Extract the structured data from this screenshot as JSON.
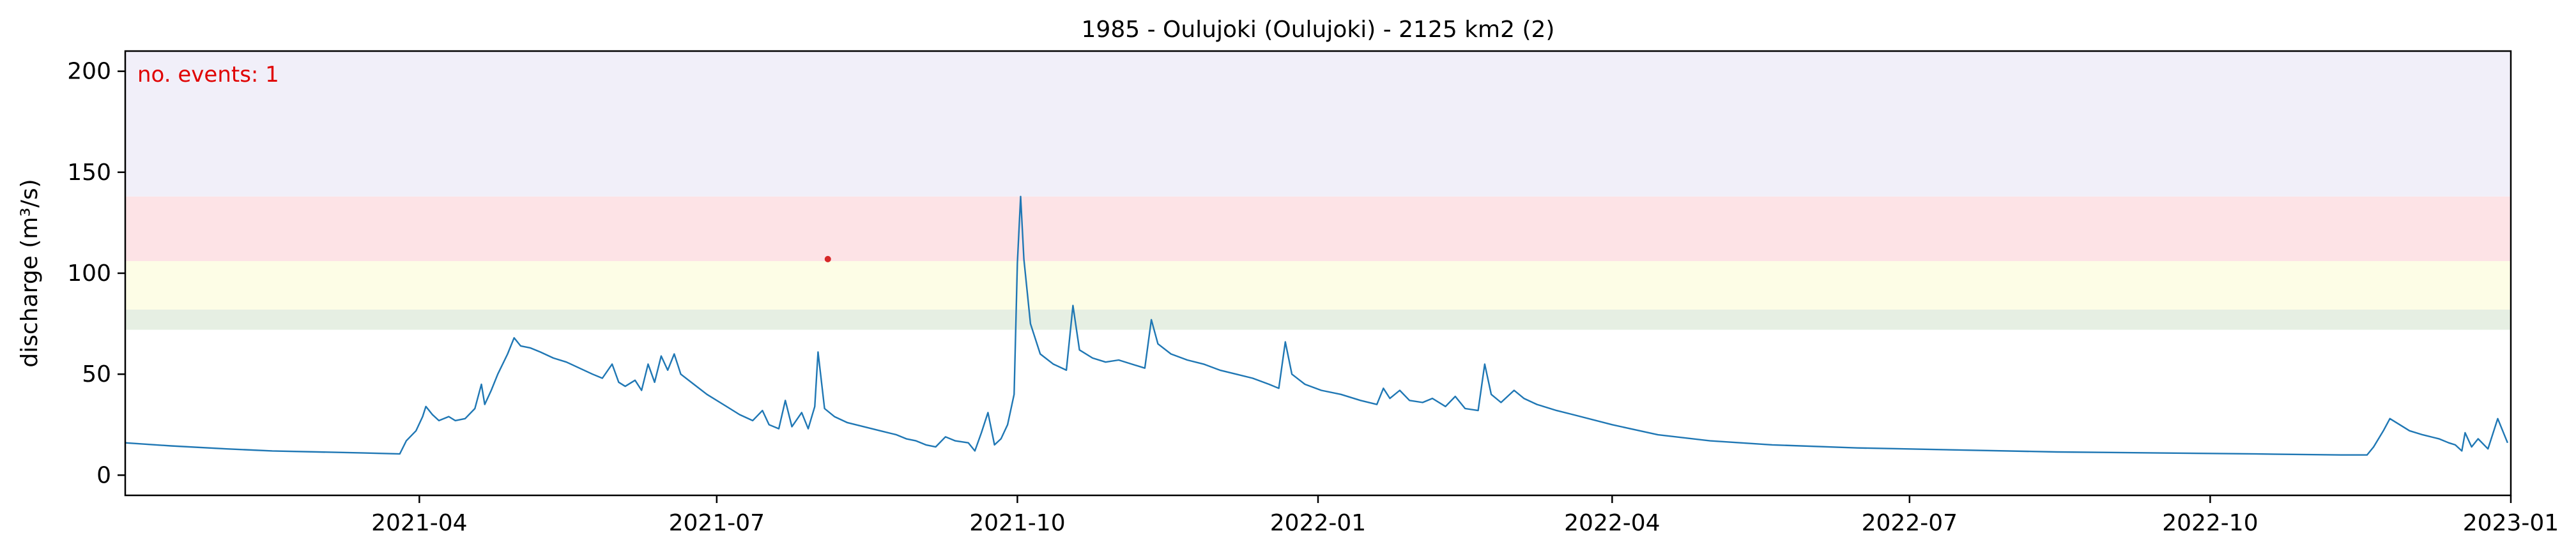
{
  "chart_data": {
    "type": "line",
    "title": "1985 - Oulujoki (Oulujoki) - 2125 km2 (2)",
    "xlabel": "",
    "ylabel": "discharge (m³/s)",
    "xlim": [
      "2021-01-01",
      "2023-01-01"
    ],
    "ylim": [
      -10,
      210
    ],
    "x_ticks": [
      "2021-04",
      "2021-07",
      "2021-10",
      "2022-01",
      "2022-04",
      "2022-07",
      "2022-10",
      "2023-01"
    ],
    "y_ticks": [
      0,
      50,
      100,
      150,
      200
    ],
    "grid": false,
    "line_color": "#1f77b4",
    "threshold_bands": [
      {
        "from": 72,
        "to": 82,
        "color": "#e6efe3"
      },
      {
        "from": 82,
        "to": 106,
        "color": "#fdfde6"
      },
      {
        "from": 106,
        "to": 138,
        "color": "#fde3e6"
      },
      {
        "from": 138,
        "to": 210,
        "color": "#f1eff9"
      }
    ],
    "annotation": {
      "text": "no. events: 1",
      "color": "#e00000"
    },
    "event": {
      "x": "2021-08-04",
      "y": 107,
      "color": "#d62728"
    },
    "series": [
      {
        "points": [
          [
            "2021-01-01",
            16
          ],
          [
            "2021-01-15",
            14.5
          ],
          [
            "2021-02-01",
            13
          ],
          [
            "2021-02-15",
            12
          ],
          [
            "2021-03-01",
            11.5
          ],
          [
            "2021-03-15",
            11
          ],
          [
            "2021-03-26",
            10.5
          ],
          [
            "2021-03-28",
            17
          ],
          [
            "2021-03-31",
            22
          ],
          [
            "2021-04-02",
            29
          ],
          [
            "2021-04-03",
            34
          ],
          [
            "2021-04-05",
            30
          ],
          [
            "2021-04-07",
            27
          ],
          [
            "2021-04-10",
            29
          ],
          [
            "2021-04-12",
            27
          ],
          [
            "2021-04-15",
            28
          ],
          [
            "2021-04-18",
            33
          ],
          [
            "2021-04-20",
            45
          ],
          [
            "2021-04-21",
            35
          ],
          [
            "2021-04-23",
            42
          ],
          [
            "2021-04-25",
            50
          ],
          [
            "2021-04-28",
            60
          ],
          [
            "2021-04-30",
            68
          ],
          [
            "2021-05-02",
            64
          ],
          [
            "2021-05-05",
            63
          ],
          [
            "2021-05-08",
            61
          ],
          [
            "2021-05-12",
            58
          ],
          [
            "2021-05-16",
            56
          ],
          [
            "2021-05-20",
            53
          ],
          [
            "2021-05-24",
            50
          ],
          [
            "2021-05-27",
            48
          ],
          [
            "2021-05-30",
            55
          ],
          [
            "2021-06-01",
            46
          ],
          [
            "2021-06-03",
            44
          ],
          [
            "2021-06-06",
            47
          ],
          [
            "2021-06-08",
            42
          ],
          [
            "2021-06-10",
            55
          ],
          [
            "2021-06-12",
            46
          ],
          [
            "2021-06-14",
            59
          ],
          [
            "2021-06-16",
            52
          ],
          [
            "2021-06-18",
            60
          ],
          [
            "2021-06-20",
            50
          ],
          [
            "2021-06-24",
            45
          ],
          [
            "2021-06-28",
            40
          ],
          [
            "2021-07-03",
            35
          ],
          [
            "2021-07-08",
            30
          ],
          [
            "2021-07-12",
            27
          ],
          [
            "2021-07-15",
            32
          ],
          [
            "2021-07-17",
            25
          ],
          [
            "2021-07-20",
            23
          ],
          [
            "2021-07-22",
            37
          ],
          [
            "2021-07-24",
            24
          ],
          [
            "2021-07-27",
            31
          ],
          [
            "2021-07-29",
            23
          ],
          [
            "2021-07-31",
            34
          ],
          [
            "2021-08-01",
            61
          ],
          [
            "2021-08-03",
            33
          ],
          [
            "2021-08-06",
            29
          ],
          [
            "2021-08-10",
            26
          ],
          [
            "2021-08-15",
            24
          ],
          [
            "2021-08-20",
            22
          ],
          [
            "2021-08-25",
            20
          ],
          [
            "2021-08-28",
            18
          ],
          [
            "2021-08-31",
            17
          ],
          [
            "2021-09-03",
            15
          ],
          [
            "2021-09-06",
            14
          ],
          [
            "2021-09-09",
            19
          ],
          [
            "2021-09-12",
            17
          ],
          [
            "2021-09-16",
            16
          ],
          [
            "2021-09-18",
            12
          ],
          [
            "2021-09-20",
            21
          ],
          [
            "2021-09-22",
            31
          ],
          [
            "2021-09-24",
            15
          ],
          [
            "2021-09-26",
            18
          ],
          [
            "2021-09-28",
            25
          ],
          [
            "2021-09-30",
            40
          ],
          [
            "2021-10-01",
            105
          ],
          [
            "2021-10-02",
            138
          ],
          [
            "2021-10-03",
            107
          ],
          [
            "2021-10-05",
            75
          ],
          [
            "2021-10-08",
            60
          ],
          [
            "2021-10-12",
            55
          ],
          [
            "2021-10-16",
            52
          ],
          [
            "2021-10-18",
            84
          ],
          [
            "2021-10-20",
            62
          ],
          [
            "2021-10-24",
            58
          ],
          [
            "2021-10-28",
            56
          ],
          [
            "2021-11-01",
            57
          ],
          [
            "2021-11-05",
            55
          ],
          [
            "2021-11-09",
            53
          ],
          [
            "2021-11-11",
            77
          ],
          [
            "2021-11-13",
            65
          ],
          [
            "2021-11-17",
            60
          ],
          [
            "2021-11-22",
            57
          ],
          [
            "2021-11-27",
            55
          ],
          [
            "2021-12-02",
            52
          ],
          [
            "2021-12-07",
            50
          ],
          [
            "2021-12-12",
            48
          ],
          [
            "2021-12-17",
            45
          ],
          [
            "2021-12-20",
            43
          ],
          [
            "2021-12-22",
            66
          ],
          [
            "2021-12-24",
            50
          ],
          [
            "2021-12-28",
            45
          ],
          [
            "2022-01-02",
            42
          ],
          [
            "2022-01-08",
            40
          ],
          [
            "2022-01-14",
            37
          ],
          [
            "2022-01-19",
            35
          ],
          [
            "2022-01-21",
            43
          ],
          [
            "2022-01-23",
            38
          ],
          [
            "2022-01-26",
            42
          ],
          [
            "2022-01-29",
            37
          ],
          [
            "2022-02-02",
            36
          ],
          [
            "2022-02-05",
            38
          ],
          [
            "2022-02-09",
            34
          ],
          [
            "2022-02-12",
            39
          ],
          [
            "2022-02-15",
            33
          ],
          [
            "2022-02-19",
            32
          ],
          [
            "2022-02-21",
            55
          ],
          [
            "2022-02-23",
            40
          ],
          [
            "2022-02-26",
            36
          ],
          [
            "2022-03-02",
            42
          ],
          [
            "2022-03-05",
            38
          ],
          [
            "2022-03-09",
            35
          ],
          [
            "2022-03-15",
            32
          ],
          [
            "2022-03-20",
            30
          ],
          [
            "2022-04-01",
            25
          ],
          [
            "2022-04-15",
            20
          ],
          [
            "2022-05-01",
            17
          ],
          [
            "2022-05-20",
            15
          ],
          [
            "2022-06-15",
            13.5
          ],
          [
            "2022-07-15",
            12.5
          ],
          [
            "2022-08-15",
            11.5
          ],
          [
            "2022-09-15",
            11
          ],
          [
            "2022-10-15",
            10.5
          ],
          [
            "2022-11-10",
            10
          ],
          [
            "2022-11-18",
            10
          ],
          [
            "2022-11-20",
            14
          ],
          [
            "2022-11-23",
            22
          ],
          [
            "2022-11-25",
            28
          ],
          [
            "2022-11-28",
            25
          ],
          [
            "2022-12-01",
            22
          ],
          [
            "2022-12-05",
            20
          ],
          [
            "2022-12-10",
            18
          ],
          [
            "2022-12-13",
            16
          ],
          [
            "2022-12-15",
            15
          ],
          [
            "2022-12-17",
            12
          ],
          [
            "2022-12-18",
            21
          ],
          [
            "2022-12-20",
            14
          ],
          [
            "2022-12-22",
            18
          ],
          [
            "2022-12-25",
            13
          ],
          [
            "2022-12-28",
            28
          ],
          [
            "2022-12-31",
            16
          ]
        ]
      }
    ]
  }
}
